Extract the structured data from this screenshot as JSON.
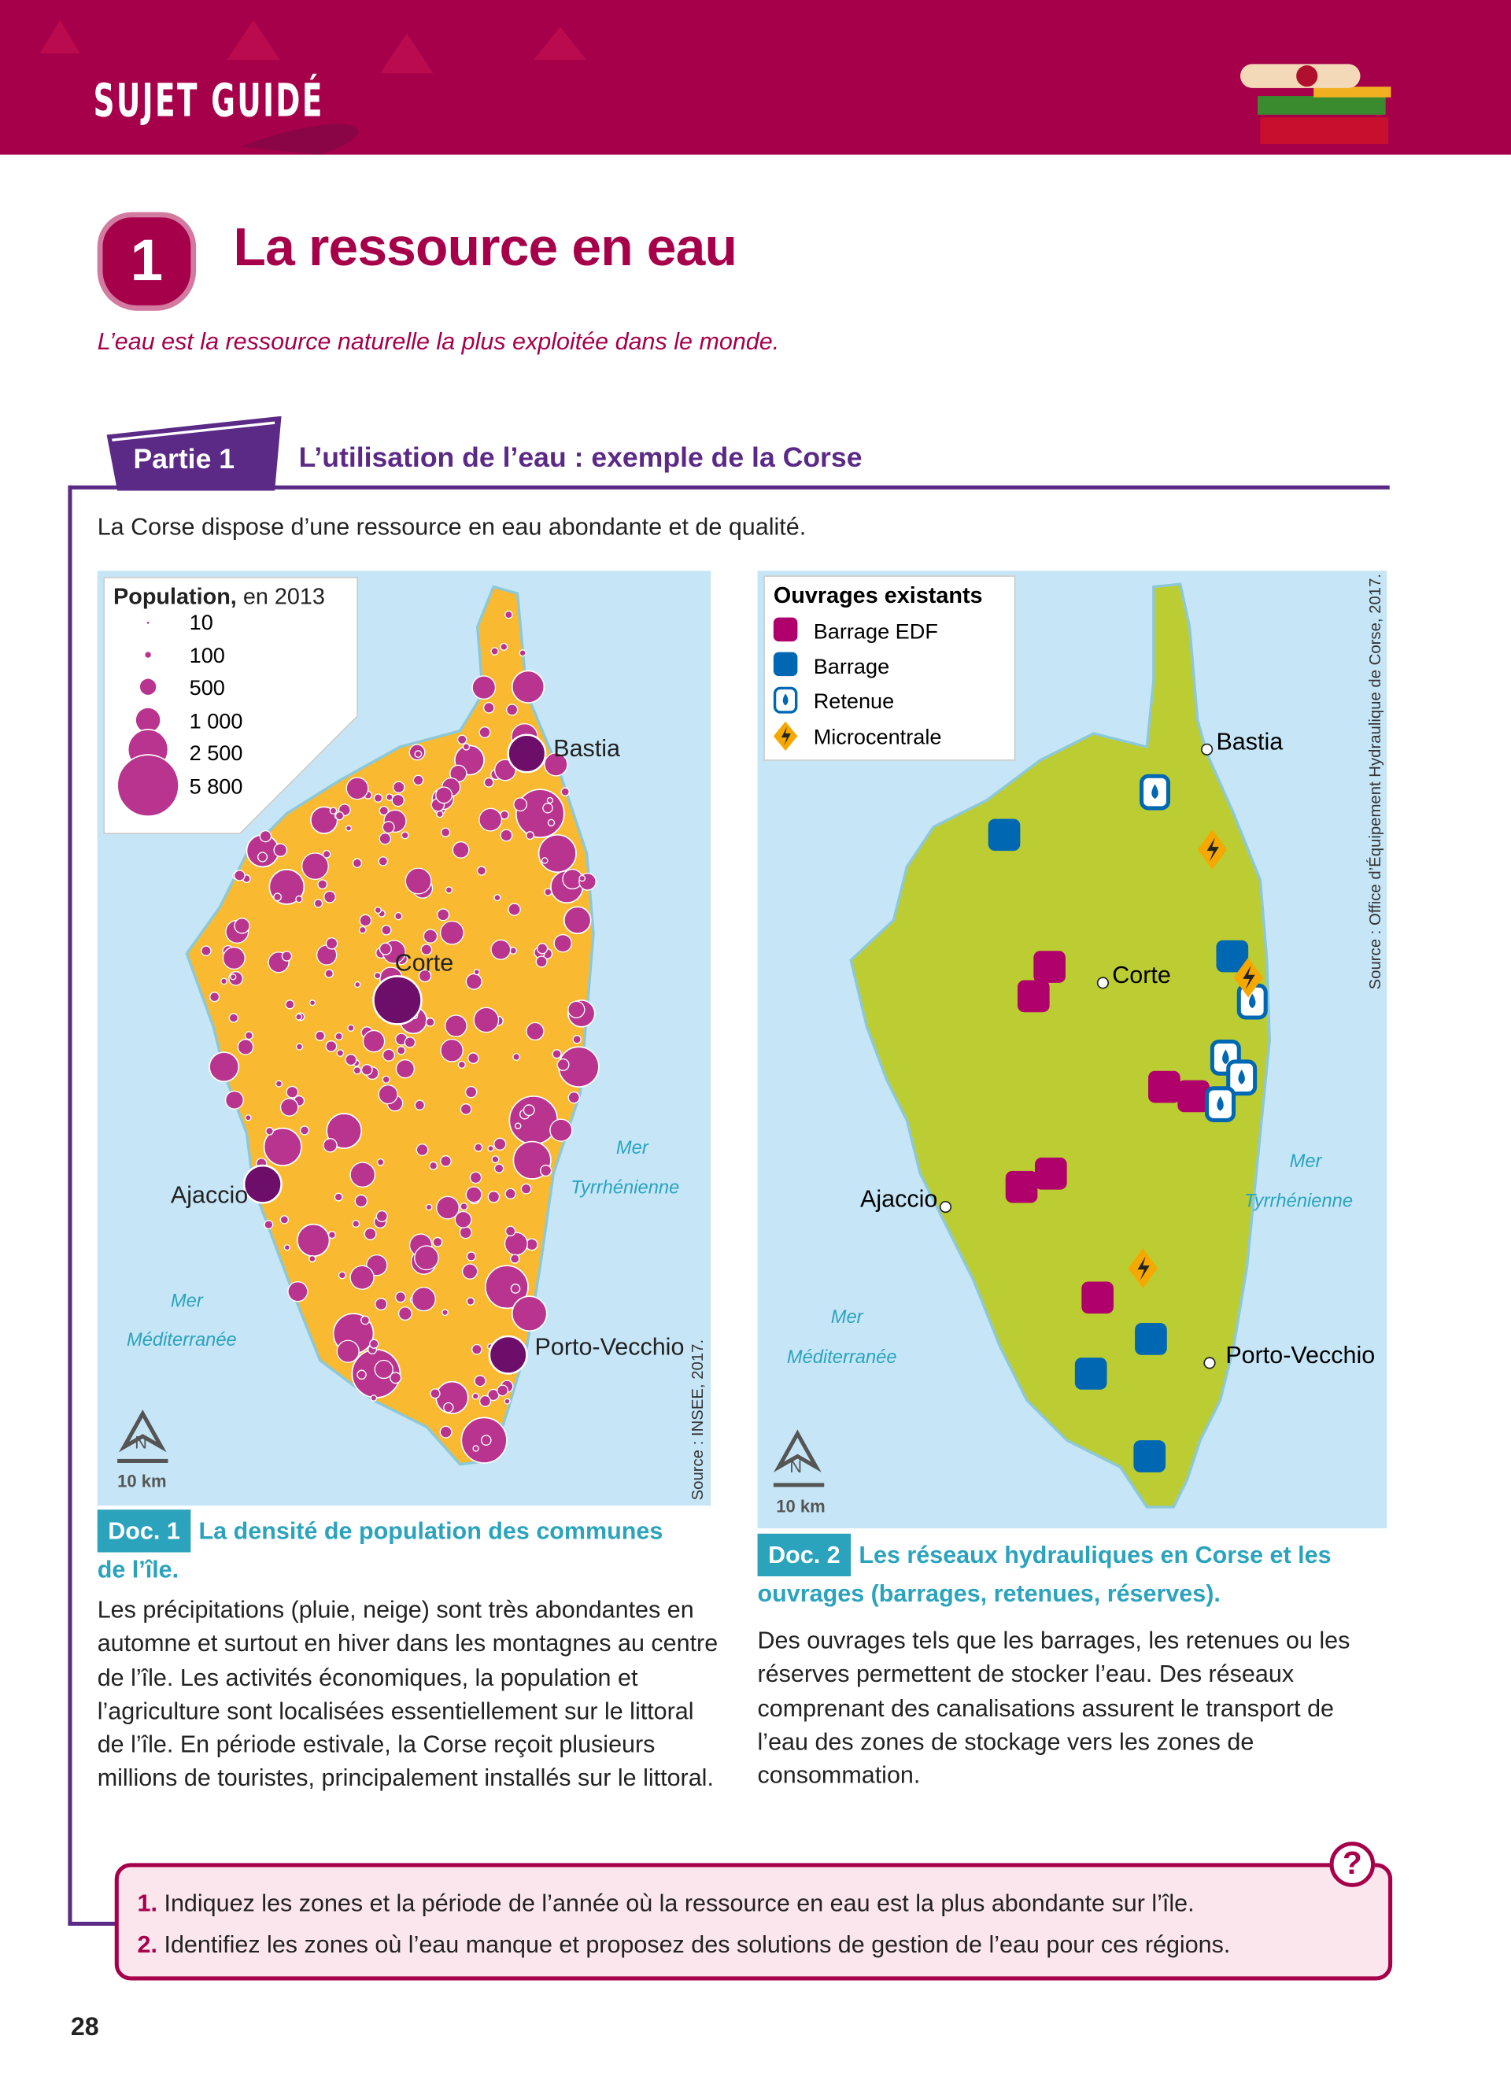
{
  "header": {
    "band_title": "SUJET GUIDÉ"
  },
  "chapter": {
    "number": "1",
    "title": "La ressource en eau",
    "subtitle": "L’eau est la ressource naturelle la plus exploitée dans le monde."
  },
  "partie": {
    "label": "Partie 1",
    "title": "L’utilisation de l’eau : exemple de la Corse"
  },
  "intro": "La Corse dispose d’une ressource en eau abondante et de qualité.",
  "doc1": {
    "legend_title_bold": "Population,",
    "legend_title_rest": " en 2013",
    "legend_items": [
      "10",
      "100",
      "500",
      "1 000",
      "2 500",
      "5 800"
    ],
    "cities": {
      "bastia": "Bastia",
      "corte": "Corte",
      "ajaccio": "Ajaccio",
      "porto_vecchio": "Porto-Vecchio"
    },
    "sea_east": [
      "Mer",
      "Tyrrhénienne"
    ],
    "sea_west": [
      "Mer",
      "Méditerranée"
    ],
    "scale": "10 km",
    "north": "N",
    "source": "Source : INSEE, 2017.",
    "doc_label": "Doc. 1",
    "caption": "La densité de population des communes de l’île.",
    "text": "Les précipitations (pluie, neige) sont très abondantes en automne et surtout en hiver dans les montagnes au centre de l’île. Les activités économiques, la population et l’agriculture sont localisées essentiellement sur le littoral de l’île. En période estivale, la Corse reçoit plusieurs millions de touristes, principalement installés sur le littoral.",
    "colors": {
      "land": "#f9b930",
      "circle": "#b8348e",
      "city": "#6d0f6a",
      "sea": "#c6e6f7"
    }
  },
  "doc2": {
    "legend_title": "Ouvrages existants",
    "legend_items": [
      "Barrage EDF",
      "Barrage",
      "Retenue",
      "Microcentrale"
    ],
    "cities": {
      "bastia": "Bastia",
      "corte": "Corte",
      "ajaccio": "Ajaccio",
      "porto_vecchio": "Porto-Vecchio"
    },
    "sea_east": [
      "Mer",
      "Tyrrhénienne"
    ],
    "sea_west": [
      "Mer",
      "Méditerranée"
    ],
    "scale": "10 km",
    "north": "N",
    "source": "Source : Office d’Équipement Hydraulique de Corse, 2017.",
    "doc_label": "Doc. 2",
    "caption": "Les réseaux hydrauliques en Corse et les ouvrages (barrages, retenues, réserves).",
    "text": "Des ouvrages tels que les barrages, les retenues ou les réserves permettent de stocker l’eau. Des réseaux comprenant des canalisations assurent le transport de l’eau des zones de stockage vers les zones de consommation.",
    "colors": {
      "land": "#bccd33",
      "barrage_edf": "#b0006b",
      "barrage": "#0067b3",
      "retenue": "#0067b3",
      "microcentrale": "#f5a800"
    }
  },
  "questions": [
    {
      "num": "1.",
      "text": "Indiquez les zones et la période de l’année où la ressource en eau est la plus abondante sur l’île."
    },
    {
      "num": "2.",
      "text": "Identifiez les zones où l’eau manque et proposez des solutions de gestion de l’eau pour ces régions."
    }
  ],
  "page_number": "28"
}
